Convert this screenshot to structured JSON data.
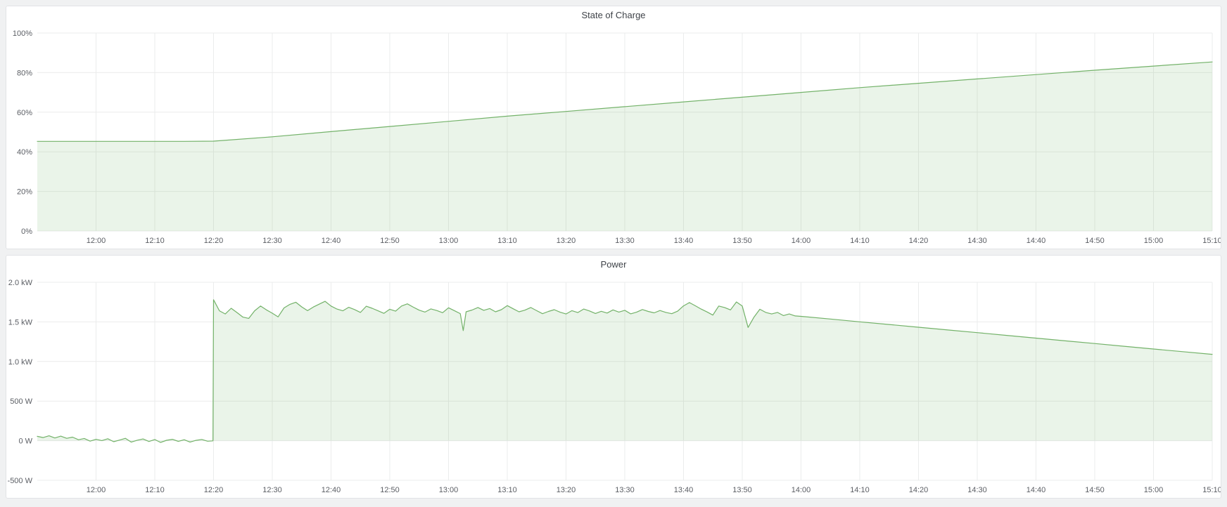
{
  "page": {
    "background_color": "#f0f1f2",
    "panel_background": "#ffffff",
    "accent_green": "#73b269"
  },
  "chart_data": [
    {
      "type": "area",
      "title": "State of Charge",
      "legend_position": "none",
      "grid": true,
      "x_domain_minutes": [
        0,
        200
      ],
      "y_domain": [
        0,
        100
      ],
      "line_color": "#73b269",
      "fill_color": "rgba(115,178,105,0.15)",
      "y_ticks": [
        {
          "v": 0,
          "label": "0%"
        },
        {
          "v": 20,
          "label": "20%"
        },
        {
          "v": 40,
          "label": "40%"
        },
        {
          "v": 60,
          "label": "60%"
        },
        {
          "v": 80,
          "label": "80%"
        },
        {
          "v": 100,
          "label": "100%"
        }
      ],
      "x_ticks": [
        {
          "t": 10,
          "label": "12:00"
        },
        {
          "t": 20,
          "label": "12:10"
        },
        {
          "t": 30,
          "label": "12:20"
        },
        {
          "t": 40,
          "label": "12:30"
        },
        {
          "t": 50,
          "label": "12:40"
        },
        {
          "t": 60,
          "label": "12:50"
        },
        {
          "t": 70,
          "label": "13:00"
        },
        {
          "t": 80,
          "label": "13:10"
        },
        {
          "t": 90,
          "label": "13:20"
        },
        {
          "t": 100,
          "label": "13:30"
        },
        {
          "t": 110,
          "label": "13:40"
        },
        {
          "t": 120,
          "label": "13:50"
        },
        {
          "t": 130,
          "label": "14:00"
        },
        {
          "t": 140,
          "label": "14:10"
        },
        {
          "t": 150,
          "label": "14:20"
        },
        {
          "t": 160,
          "label": "14:30"
        },
        {
          "t": 170,
          "label": "14:40"
        },
        {
          "t": 180,
          "label": "14:50"
        },
        {
          "t": 190,
          "label": "15:00"
        },
        {
          "t": 200,
          "label": "15:10"
        }
      ],
      "series": [
        {
          "name": "State of Charge",
          "unit": "%",
          "points": [
            [
              0,
              45.3
            ],
            [
              5,
              45.3
            ],
            [
              10,
              45.3
            ],
            [
              15,
              45.3
            ],
            [
              20,
              45.3
            ],
            [
              25,
              45.3
            ],
            [
              30,
              45.4
            ],
            [
              40,
              47.6
            ],
            [
              50,
              50.2
            ],
            [
              60,
              52.8
            ],
            [
              70,
              55.4
            ],
            [
              80,
              58.0
            ],
            [
              90,
              60.4
            ],
            [
              100,
              62.8
            ],
            [
              110,
              65.2
            ],
            [
              120,
              67.6
            ],
            [
              130,
              70.0
            ],
            [
              140,
              72.4
            ],
            [
              150,
              74.6
            ],
            [
              160,
              76.8
            ],
            [
              170,
              79.0
            ],
            [
              180,
              81.2
            ],
            [
              190,
              83.3
            ],
            [
              200,
              85.4
            ]
          ]
        }
      ]
    },
    {
      "type": "area",
      "title": "Power",
      "legend_position": "none",
      "grid": true,
      "x_domain_minutes": [
        0,
        200
      ],
      "y_domain": [
        -500,
        2000
      ],
      "line_color": "#73b269",
      "fill_color": "rgba(115,178,105,0.15)",
      "y_ticks": [
        {
          "v": -500,
          "label": "-500 W"
        },
        {
          "v": 0,
          "label": "0 W"
        },
        {
          "v": 500,
          "label": "500 W"
        },
        {
          "v": 1000,
          "label": "1.0 kW"
        },
        {
          "v": 1500,
          "label": "1.5 kW"
        },
        {
          "v": 2000,
          "label": "2.0 kW"
        }
      ],
      "x_ticks": [
        {
          "t": 10,
          "label": "12:00"
        },
        {
          "t": 20,
          "label": "12:10"
        },
        {
          "t": 30,
          "label": "12:20"
        },
        {
          "t": 40,
          "label": "12:30"
        },
        {
          "t": 50,
          "label": "12:40"
        },
        {
          "t": 60,
          "label": "12:50"
        },
        {
          "t": 70,
          "label": "13:00"
        },
        {
          "t": 80,
          "label": "13:10"
        },
        {
          "t": 90,
          "label": "13:20"
        },
        {
          "t": 100,
          "label": "13:30"
        },
        {
          "t": 110,
          "label": "13:40"
        },
        {
          "t": 120,
          "label": "13:50"
        },
        {
          "t": 130,
          "label": "14:00"
        },
        {
          "t": 140,
          "label": "14:10"
        },
        {
          "t": 150,
          "label": "14:20"
        },
        {
          "t": 160,
          "label": "14:30"
        },
        {
          "t": 170,
          "label": "14:40"
        },
        {
          "t": 180,
          "label": "14:50"
        },
        {
          "t": 190,
          "label": "15:00"
        },
        {
          "t": 200,
          "label": "15:10"
        }
      ],
      "series": [
        {
          "name": "Power",
          "unit": "W",
          "points": [
            [
              0,
              55
            ],
            [
              1,
              40
            ],
            [
              2,
              62
            ],
            [
              3,
              35
            ],
            [
              4,
              58
            ],
            [
              5,
              30
            ],
            [
              6,
              45
            ],
            [
              7,
              12
            ],
            [
              8,
              28
            ],
            [
              9,
              -5
            ],
            [
              10,
              18
            ],
            [
              11,
              2
            ],
            [
              12,
              25
            ],
            [
              13,
              -12
            ],
            [
              14,
              8
            ],
            [
              15,
              30
            ],
            [
              16,
              -18
            ],
            [
              17,
              6
            ],
            [
              18,
              22
            ],
            [
              19,
              -10
            ],
            [
              20,
              15
            ],
            [
              21,
              -22
            ],
            [
              22,
              5
            ],
            [
              23,
              18
            ],
            [
              24,
              -8
            ],
            [
              25,
              12
            ],
            [
              26,
              -18
            ],
            [
              27,
              4
            ],
            [
              28,
              16
            ],
            [
              29,
              -6
            ],
            [
              29.9,
              -2
            ],
            [
              30,
              1780
            ],
            [
              31,
              1640
            ],
            [
              32,
              1600
            ],
            [
              33,
              1672
            ],
            [
              34,
              1618
            ],
            [
              35,
              1560
            ],
            [
              36,
              1544
            ],
            [
              37,
              1640
            ],
            [
              38,
              1700
            ],
            [
              39,
              1652
            ],
            [
              40,
              1610
            ],
            [
              41,
              1564
            ],
            [
              42,
              1676
            ],
            [
              43,
              1722
            ],
            [
              44,
              1748
            ],
            [
              45,
              1690
            ],
            [
              46,
              1642
            ],
            [
              47,
              1688
            ],
            [
              48,
              1724
            ],
            [
              49,
              1760
            ],
            [
              50,
              1700
            ],
            [
              51,
              1662
            ],
            [
              52,
              1640
            ],
            [
              53,
              1684
            ],
            [
              54,
              1656
            ],
            [
              55,
              1620
            ],
            [
              56,
              1698
            ],
            [
              57,
              1672
            ],
            [
              58,
              1640
            ],
            [
              59,
              1608
            ],
            [
              60,
              1660
            ],
            [
              61,
              1636
            ],
            [
              62,
              1700
            ],
            [
              63,
              1728
            ],
            [
              64,
              1686
            ],
            [
              65,
              1648
            ],
            [
              66,
              1624
            ],
            [
              67,
              1664
            ],
            [
              68,
              1644
            ],
            [
              69,
              1616
            ],
            [
              70,
              1678
            ],
            [
              71,
              1642
            ],
            [
              72,
              1605
            ],
            [
              72.5,
              1390
            ],
            [
              73,
              1628
            ],
            [
              74,
              1650
            ],
            [
              75,
              1682
            ],
            [
              76,
              1646
            ],
            [
              77,
              1668
            ],
            [
              78,
              1628
            ],
            [
              79,
              1654
            ],
            [
              80,
              1706
            ],
            [
              81,
              1666
            ],
            [
              82,
              1628
            ],
            [
              83,
              1648
            ],
            [
              84,
              1682
            ],
            [
              85,
              1642
            ],
            [
              86,
              1604
            ],
            [
              87,
              1632
            ],
            [
              88,
              1654
            ],
            [
              89,
              1622
            ],
            [
              90,
              1600
            ],
            [
              91,
              1642
            ],
            [
              92,
              1618
            ],
            [
              93,
              1662
            ],
            [
              94,
              1638
            ],
            [
              95,
              1606
            ],
            [
              96,
              1634
            ],
            [
              97,
              1612
            ],
            [
              98,
              1652
            ],
            [
              99,
              1624
            ],
            [
              100,
              1646
            ],
            [
              101,
              1602
            ],
            [
              102,
              1622
            ],
            [
              103,
              1656
            ],
            [
              104,
              1632
            ],
            [
              105,
              1614
            ],
            [
              106,
              1644
            ],
            [
              107,
              1620
            ],
            [
              108,
              1604
            ],
            [
              109,
              1636
            ],
            [
              110,
              1702
            ],
            [
              111,
              1744
            ],
            [
              112,
              1704
            ],
            [
              113,
              1662
            ],
            [
              114,
              1626
            ],
            [
              115,
              1586
            ],
            [
              116,
              1700
            ],
            [
              117,
              1682
            ],
            [
              118,
              1652
            ],
            [
              119,
              1752
            ],
            [
              120,
              1700
            ],
            [
              121,
              1430
            ],
            [
              122,
              1560
            ],
            [
              123,
              1660
            ],
            [
              124,
              1620
            ],
            [
              125,
              1600
            ],
            [
              126,
              1620
            ],
            [
              127,
              1580
            ],
            [
              128,
              1600
            ],
            [
              129,
              1575
            ],
            [
              130,
              1570
            ],
            [
              135,
              1536
            ],
            [
              140,
              1501
            ],
            [
              145,
              1467
            ],
            [
              150,
              1433
            ],
            [
              155,
              1398
            ],
            [
              160,
              1364
            ],
            [
              165,
              1330
            ],
            [
              170,
              1295
            ],
            [
              175,
              1261
            ],
            [
              180,
              1227
            ],
            [
              185,
              1192
            ],
            [
              190,
              1158
            ],
            [
              195,
              1124
            ],
            [
              200,
              1090
            ]
          ]
        }
      ]
    }
  ]
}
